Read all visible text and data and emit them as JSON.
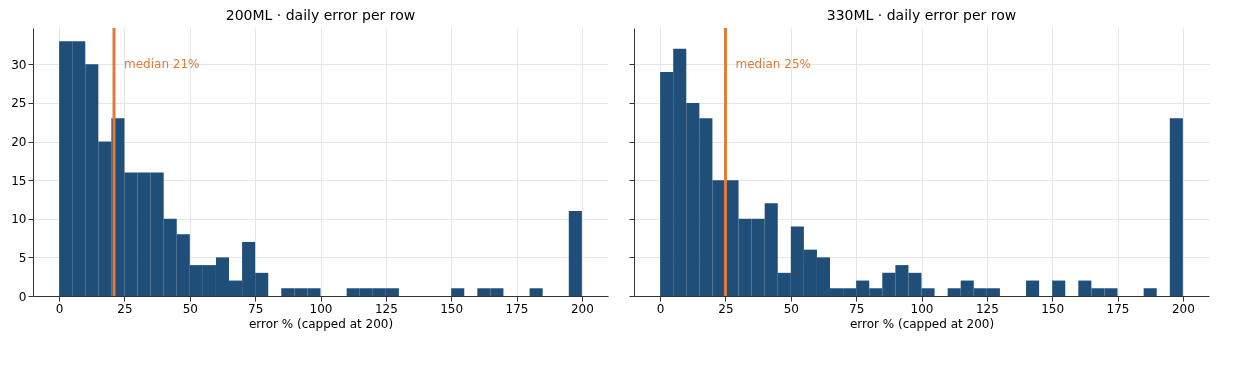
{
  "chart_data": [
    {
      "type": "histogram",
      "title": "200ML · daily error per row",
      "xlabel": "error % (capped at 200)",
      "bins": [
        0,
        5,
        10,
        15,
        20,
        25,
        30,
        35,
        40,
        45,
        50,
        55,
        60,
        65,
        70,
        75,
        80,
        85,
        90,
        95,
        100,
        105,
        110,
        115,
        120,
        125,
        130,
        135,
        140,
        145,
        150,
        155,
        160,
        165,
        170,
        175,
        180,
        185,
        190,
        195,
        200
      ],
      "values": [
        33,
        33,
        30,
        20,
        23,
        16,
        16,
        16,
        10,
        8,
        4,
        4,
        5,
        2,
        7,
        3,
        0,
        1,
        1,
        1,
        0,
        0,
        1,
        1,
        1,
        1,
        0,
        0,
        0,
        0,
        1,
        0,
        1,
        1,
        0,
        0,
        1,
        0,
        0,
        11
      ],
      "color": "#1f4e79",
      "xlim": [
        -10,
        210
      ],
      "xticks": [
        0,
        25,
        50,
        75,
        100,
        125,
        150,
        175,
        200
      ],
      "ylim": [
        0,
        34.7
      ],
      "yticks": [
        0,
        5,
        10,
        15,
        20,
        25,
        30
      ],
      "grid": true,
      "ref_lines": [
        {
          "axis": "x",
          "value": 21,
          "label": "median 21%",
          "color": "#e07b39"
        }
      ]
    },
    {
      "type": "histogram",
      "title": "330ML · daily error per row",
      "xlabel": "error % (capped at 200)",
      "bins": [
        0,
        5,
        10,
        15,
        20,
        25,
        30,
        35,
        40,
        45,
        50,
        55,
        60,
        65,
        70,
        75,
        80,
        85,
        90,
        95,
        100,
        105,
        110,
        115,
        120,
        125,
        130,
        135,
        140,
        145,
        150,
        155,
        160,
        165,
        170,
        175,
        180,
        185,
        190,
        195,
        200
      ],
      "values": [
        29,
        32,
        25,
        23,
        15,
        15,
        10,
        10,
        12,
        3,
        9,
        6,
        5,
        1,
        1,
        2,
        1,
        3,
        4,
        3,
        1,
        0,
        1,
        2,
        1,
        1,
        0,
        0,
        2,
        0,
        2,
        0,
        2,
        1,
        1,
        0,
        0,
        1,
        0,
        23
      ],
      "color": "#1f4e79",
      "xlim": [
        -10,
        210
      ],
      "xticks": [
        0,
        25,
        50,
        75,
        100,
        125,
        150,
        175,
        200
      ],
      "ylim": [
        0,
        34.7
      ],
      "yticks": [
        0,
        5,
        10,
        15,
        20,
        25,
        30
      ],
      "grid": true,
      "tick_labels": "x",
      "ref_lines": [
        {
          "axis": "x",
          "value": 25,
          "label": "median 25%",
          "color": "#e07b39"
        }
      ]
    }
  ]
}
